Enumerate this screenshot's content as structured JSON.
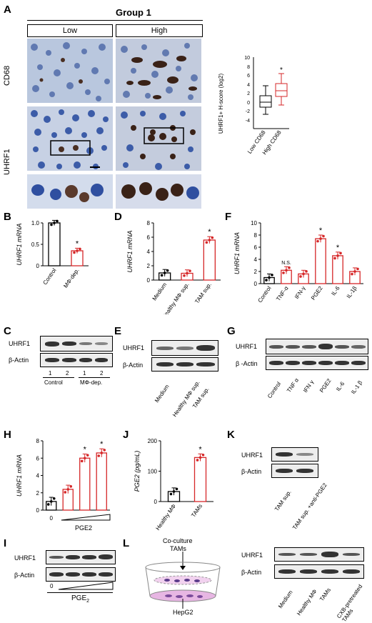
{
  "panels": {
    "A": "A",
    "B": "B",
    "C": "C",
    "D": "D",
    "E": "E",
    "F": "F",
    "G": "G",
    "H": "H",
    "I": "I",
    "J": "J",
    "K": "K",
    "L": "L"
  },
  "panelA": {
    "group_title": "Group 1",
    "col_low": "Low",
    "col_high": "High",
    "row_cd68": "CD68",
    "row_uhrf1": "UHRF1"
  },
  "boxplot": {
    "ylabel": "UHRF1+ H-score (log2)",
    "categories": [
      "Low CD68",
      "High CD68"
    ],
    "ticks": [
      "10",
      "8",
      "6",
      "4",
      "2",
      "0",
      "-2",
      "-4"
    ],
    "star": "*"
  },
  "wb": {
    "uhrf1": "UHRF1",
    "actin": "β-Actin",
    "actin_g": "β -Actin"
  },
  "panelC": {
    "lanes": [
      "1",
      "2",
      "1",
      "2"
    ],
    "groups": [
      "Control",
      "MΦ-dep."
    ]
  },
  "panelE": {
    "lanes": [
      "Medium",
      "Healthy MΦ sup.",
      "TAM sup."
    ]
  },
  "panelG": {
    "lanes": [
      "Control",
      "TNF α",
      "IFN γ",
      "PGE2",
      "IL-6",
      "IL-1 β"
    ]
  },
  "panelI": {
    "zero": "0",
    "xlabel": "PGE2"
  },
  "panelK": {
    "lanes": [
      "TAM sup.",
      "TAM sup. +anti-PGE2"
    ]
  },
  "panelL": {
    "coculture": "Co-culture",
    "tams": "TAMs",
    "hepg2": "HepG2",
    "lanes": [
      "Medium",
      "Healthy MΦ",
      "TAMs",
      "CXB-pretreated TAMs"
    ]
  },
  "chart_data": [
    {
      "panel": "B",
      "type": "bar",
      "categories": [
        "Control",
        "MΦ-dep."
      ],
      "values": [
        1.0,
        0.35
      ],
      "ylabel": "UHRF1 mRNA",
      "ylim": [
        0,
        1.0
      ],
      "yticks": [
        "1.0",
        "0.5",
        "0"
      ],
      "significance": [
        "",
        "*"
      ],
      "colors": [
        "#000000",
        "#d62728"
      ]
    },
    {
      "panel": "D",
      "type": "bar",
      "categories": [
        "Medium",
        "Healthy MΦ sup.",
        "TAM sup."
      ],
      "values": [
        1.0,
        0.95,
        5.6
      ],
      "ylabel": "UHRF1 mRNA",
      "ylim": [
        0,
        8
      ],
      "yticks": [
        "8",
        "6",
        "4",
        "2",
        "0"
      ],
      "significance": [
        "",
        "",
        "*"
      ],
      "colors": [
        "#000000",
        "#d62728",
        "#d62728"
      ]
    },
    {
      "panel": "F",
      "type": "bar",
      "categories": [
        "Control",
        "TNF-α",
        "IFN-γ",
        "PGE2",
        "IL-6",
        "IL-1β"
      ],
      "values": [
        1.0,
        2.2,
        1.6,
        7.4,
        4.6,
        2.0
      ],
      "ylabel": "UHRF1 mRNA",
      "ylim": [
        0,
        10
      ],
      "yticks": [
        "10",
        "8",
        "6",
        "4",
        "2",
        "0"
      ],
      "significance": [
        "",
        "N.S.",
        "",
        "*",
        "*",
        ""
      ],
      "colors": [
        "#000000",
        "#d62728",
        "#d62728",
        "#d62728",
        "#d62728",
        "#d62728"
      ]
    },
    {
      "panel": "H",
      "type": "bar",
      "categories": [
        "0",
        "PGE2 low",
        "PGE2 mid",
        "PGE2 high"
      ],
      "values": [
        1.0,
        2.4,
        6.0,
        6.6
      ],
      "ylabel": "UHRF1 mRNA",
      "xlabel": "PGE2",
      "ylim": [
        0,
        8
      ],
      "yticks": [
        "8",
        "6",
        "4",
        "2",
        "0"
      ],
      "significance": [
        "",
        "",
        "*",
        "*"
      ],
      "colors": [
        "#000000",
        "#d62728",
        "#d62728",
        "#d62728"
      ]
    },
    {
      "panel": "J",
      "type": "bar",
      "categories": [
        "Healthy MΦ",
        "TAMs"
      ],
      "values": [
        33,
        145
      ],
      "ylabel": "PGE2 (pg/mL)",
      "ylim": [
        0,
        200
      ],
      "yticks": [
        "200",
        "100",
        "0"
      ],
      "significance": [
        "",
        "*"
      ],
      "colors": [
        "#000000",
        "#d62728"
      ]
    }
  ]
}
